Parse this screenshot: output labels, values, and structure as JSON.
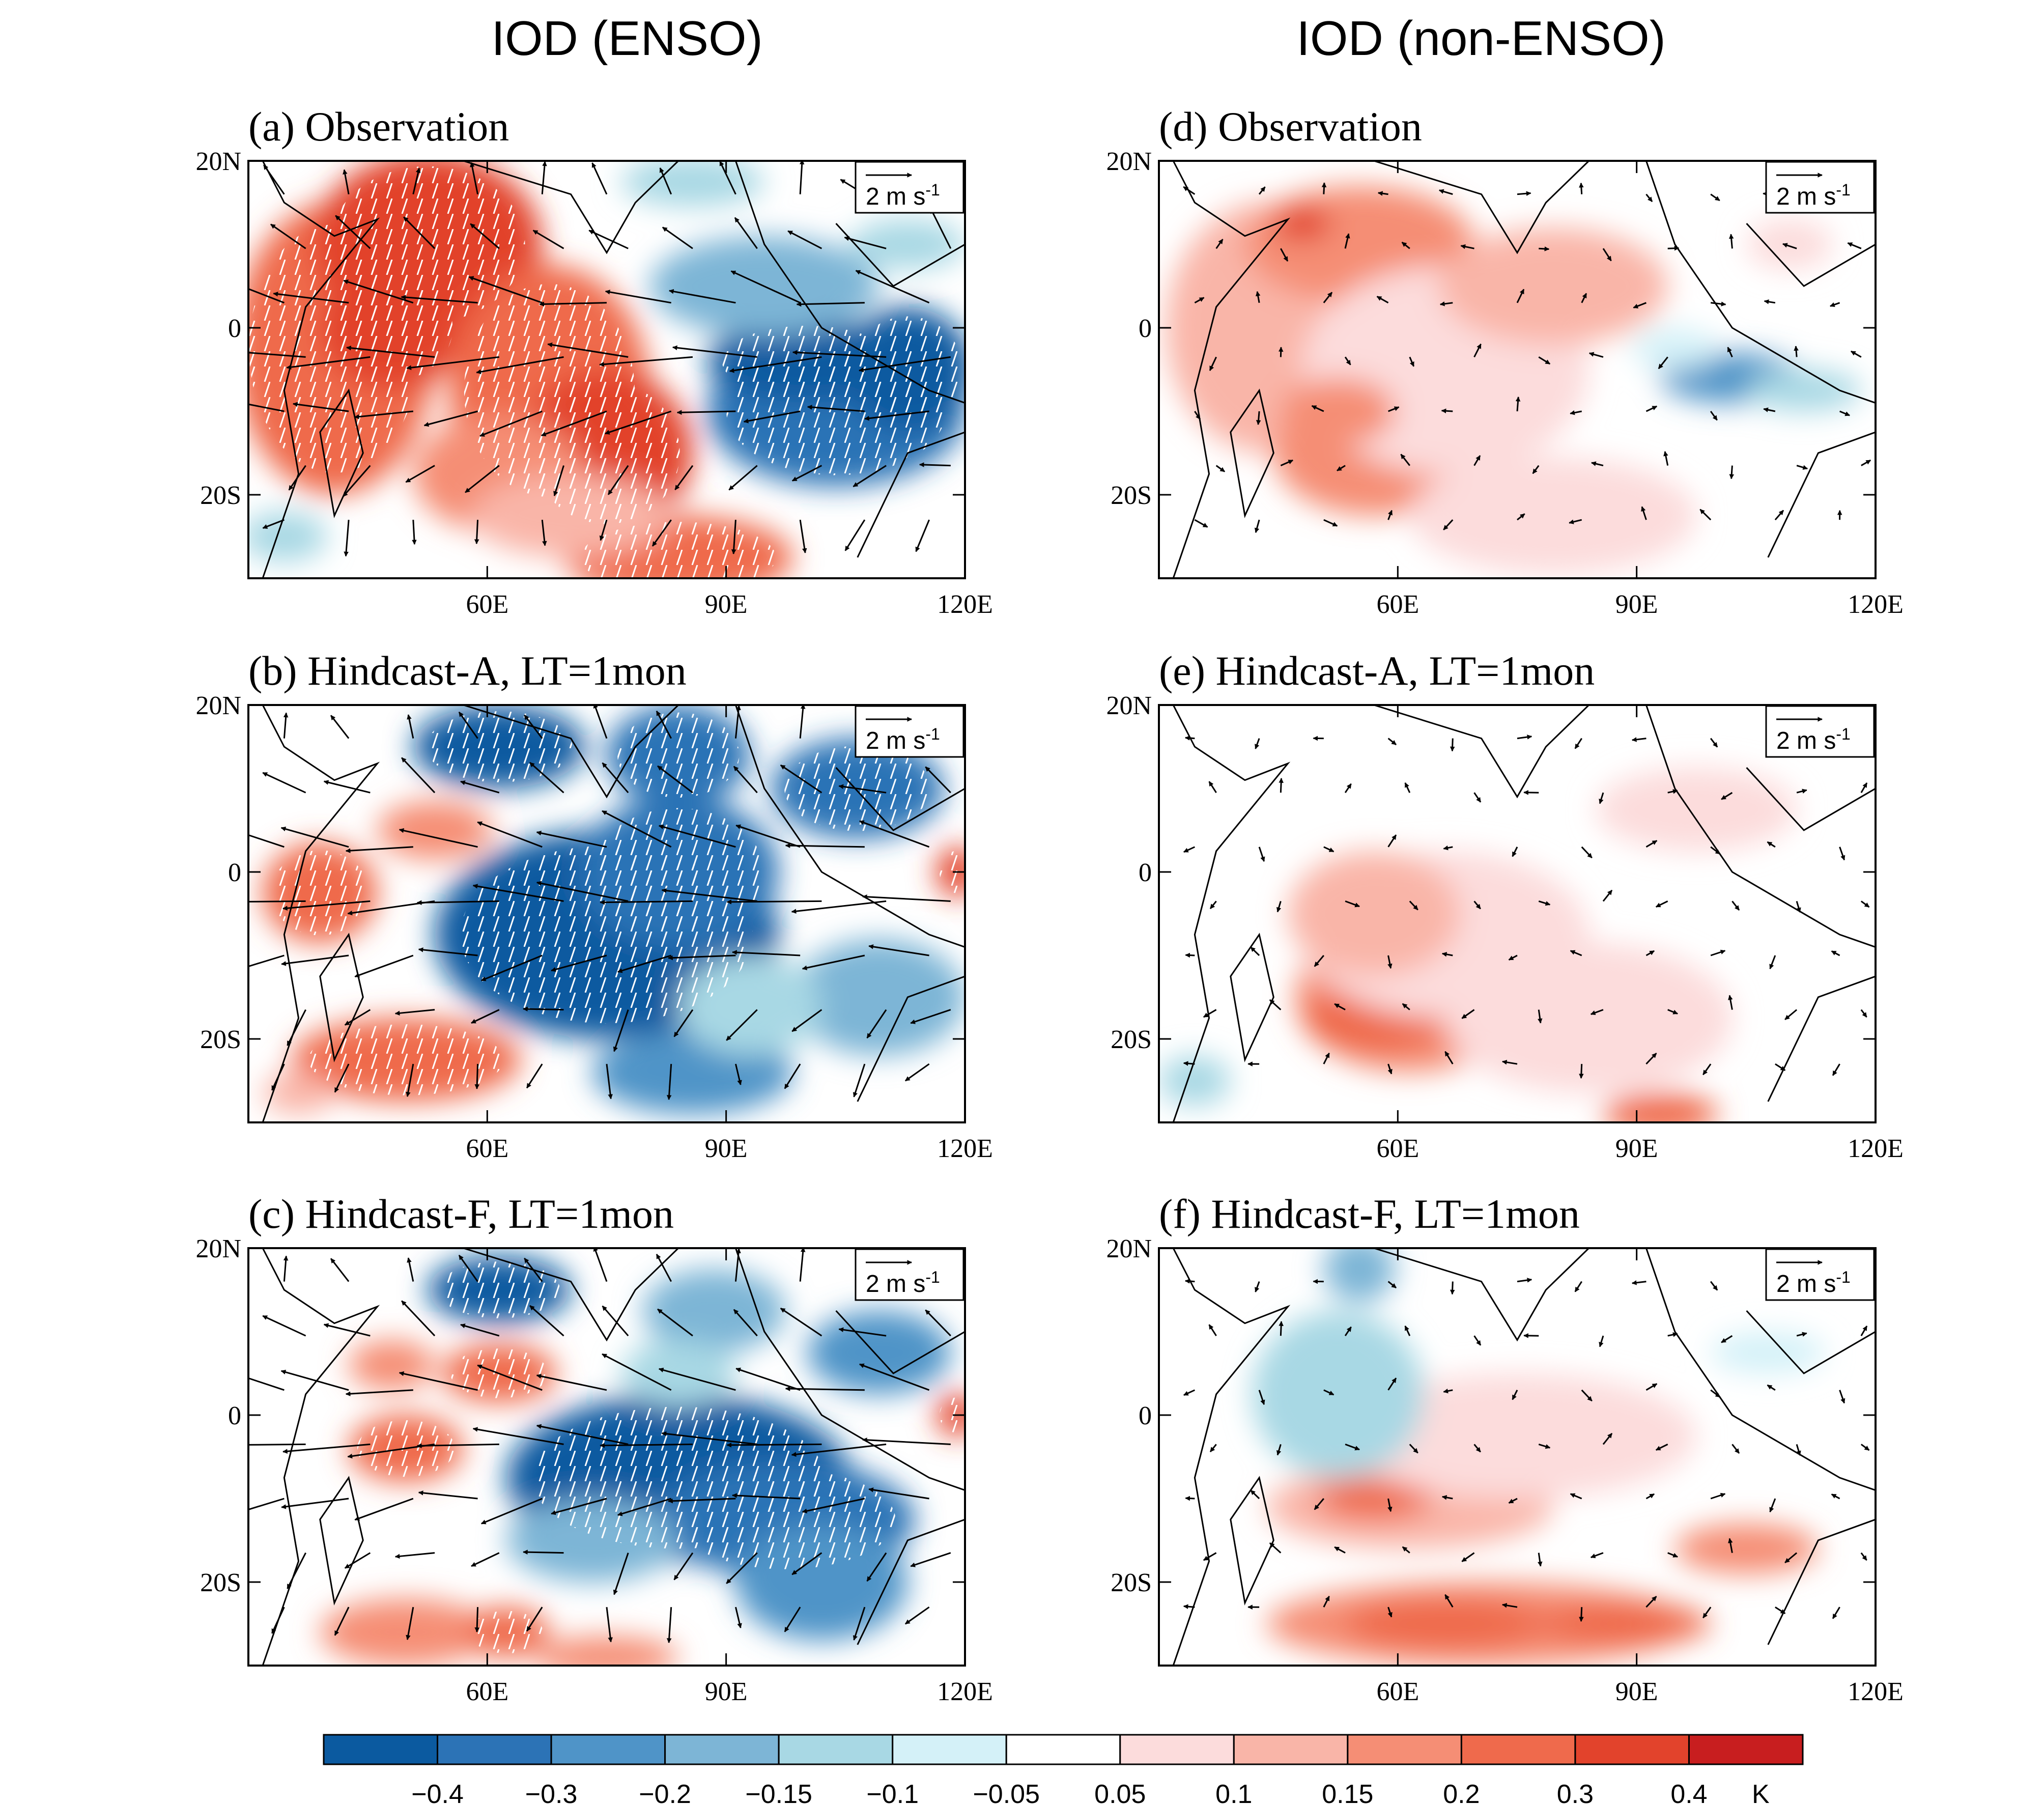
{
  "columns": [
    {
      "title": "IOD (ENSO)"
    },
    {
      "title": "IOD (non-ENSO)"
    }
  ],
  "panels": [
    {
      "id": "a",
      "title": "(a) Observation",
      "pattern": "obs_enso",
      "hatched": true
    },
    {
      "id": "b",
      "title": "(b) Hindcast-A, LT=1mon",
      "pattern": "hinda_enso",
      "hatched": true
    },
    {
      "id": "c",
      "title": "(c) Hindcast-F, LT=1mon",
      "pattern": "hindf_enso",
      "hatched": true
    },
    {
      "id": "d",
      "title": "(d) Observation",
      "pattern": "obs_non",
      "hatched": false
    },
    {
      "id": "e",
      "title": "(e) Hindcast-A, LT=1mon",
      "pattern": "hinda_non",
      "hatched": false
    },
    {
      "id": "f",
      "title": "(f) Hindcast-F, LT=1mon",
      "pattern": "hindf_non",
      "hatched": false
    }
  ],
  "axes": {
    "lat_labels": [
      "20N",
      "0",
      "20S"
    ],
    "lon_labels": [
      "60E",
      "90E",
      "120E"
    ],
    "lon_range": [
      30,
      120
    ],
    "lat_range": [
      -30,
      20
    ]
  },
  "reference_vector": {
    "label": "2 m s",
    "exponent": "-1"
  },
  "colorbar": {
    "labels": [
      "−0.4",
      "−0.3",
      "−0.2",
      "−0.15",
      "−0.1",
      "−0.05",
      "0.05",
      "0.1",
      "0.15",
      "0.2",
      "0.3",
      "0.4"
    ],
    "unit": "K",
    "colors": [
      "#0b5aa0",
      "#2c73b6",
      "#4f94c8",
      "#7db5d6",
      "#a8d8e4",
      "#d4f1f8",
      "#ffffff",
      "#fcdcdc",
      "#f9b5a8",
      "#f58e75",
      "#ef6a4c",
      "#e2432c",
      "#c81e1f"
    ]
  }
}
